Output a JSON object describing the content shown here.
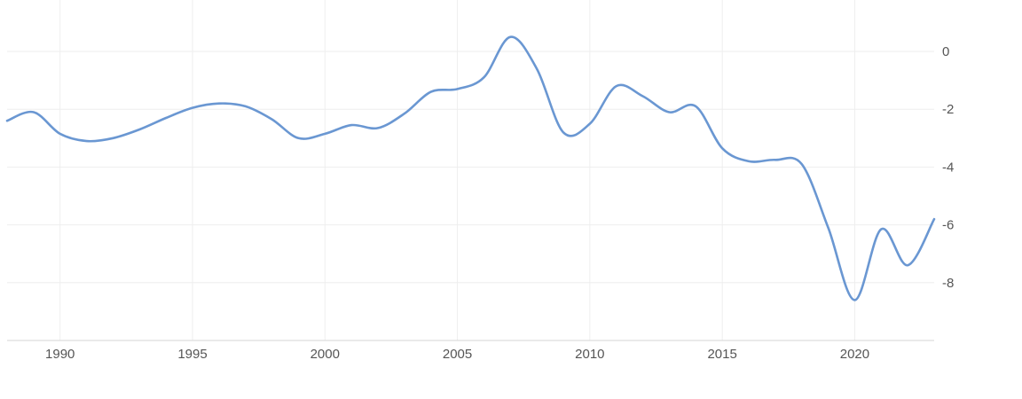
{
  "chart_data": {
    "type": "line",
    "title": "",
    "xlabel": "",
    "ylabel": "",
    "xlim": [
      1988,
      2023
    ],
    "ylim": [
      -10,
      2
    ],
    "grid": true,
    "legend": "none",
    "x_ticks": [
      1990,
      1995,
      2000,
      2005,
      2010,
      2015,
      2020
    ],
    "x_tick_labels": [
      "1990",
      "1995",
      "2000",
      "2005",
      "2010",
      "2015",
      "2020"
    ],
    "y_ticks": [
      0,
      -2,
      -4,
      -6,
      -8
    ],
    "y_tick_labels": [
      "0",
      "-2",
      "-4",
      "-6",
      "-8"
    ],
    "y_axis_position": "right",
    "colors": {
      "series": "#6a97d2",
      "grid": "#eeeeee",
      "text": "#555555"
    },
    "series": [
      {
        "x": [
          1988,
          1989,
          1990,
          1991,
          1992,
          1993,
          1994,
          1995,
          1996,
          1997,
          1998,
          1999,
          2000,
          2001,
          2002,
          2003,
          2004,
          2005,
          2006,
          2007,
          2008,
          2009,
          2010,
          2011,
          2012,
          2013,
          2014,
          2015,
          2016,
          2017,
          2018,
          2019,
          2020,
          2021,
          2022,
          2023
        ],
        "y": [
          -2.4,
          -2.1,
          -2.85,
          -3.1,
          -3.0,
          -2.7,
          -2.3,
          -1.95,
          -1.8,
          -1.9,
          -2.35,
          -3.0,
          -2.85,
          -2.55,
          -2.65,
          -2.15,
          -1.4,
          -1.3,
          -0.9,
          0.5,
          -0.6,
          -2.8,
          -2.5,
          -1.2,
          -1.55,
          -2.1,
          -1.9,
          -3.35,
          -3.8,
          -3.75,
          -3.9,
          -6.1,
          -8.6,
          -6.15,
          -7.4,
          -5.8
        ]
      }
    ]
  }
}
